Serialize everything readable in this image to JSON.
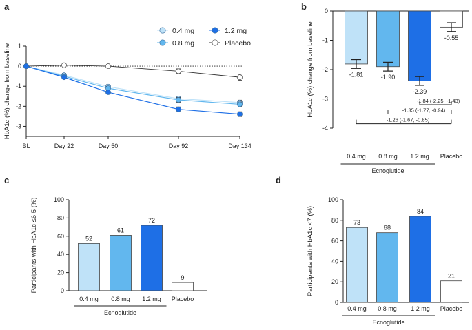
{
  "colors": {
    "dose_04": "#bfe2f8",
    "dose_08": "#62b7ee",
    "dose_12": "#1e6fe6",
    "placebo": "#ffffff",
    "axis": "#222222",
    "edge": "#444444"
  },
  "chart_data": [
    {
      "panel": "a",
      "type": "line",
      "categories": [
        "BL",
        "Day 22",
        "Day 50",
        "Day 92",
        "Day 134"
      ],
      "ylabel": "HbA1c (%) change from baseline",
      "ylim": [
        -3.5,
        1
      ],
      "yticks": [
        1,
        0,
        -1,
        -2,
        -3
      ],
      "legend_position": "top-right",
      "reference_line": 0,
      "series": [
        {
          "name": "0.4 mg",
          "color_key": "dose_04",
          "values": [
            0,
            -0.45,
            -1.02,
            -1.62,
            -1.81
          ],
          "errors": [
            0,
            0.09,
            0.1,
            0.12,
            0.12
          ]
        },
        {
          "name": "0.8 mg",
          "color_key": "dose_08",
          "values": [
            0,
            -0.5,
            -1.1,
            -1.68,
            -1.9
          ],
          "errors": [
            0,
            0.09,
            0.1,
            0.12,
            0.12
          ]
        },
        {
          "name": "1.2 mg",
          "color_key": "dose_12",
          "values": [
            0,
            -0.55,
            -1.3,
            -2.15,
            -2.39
          ],
          "errors": [
            0,
            0.08,
            0.09,
            0.12,
            0.12
          ]
        },
        {
          "name": "Placebo",
          "color_key": "placebo",
          "values": [
            0,
            0.05,
            0.0,
            -0.25,
            -0.55
          ],
          "errors": [
            0,
            0.06,
            0.07,
            0.12,
            0.15
          ]
        }
      ]
    },
    {
      "panel": "b",
      "type": "bar",
      "categories": [
        "0.4 mg",
        "0.8 mg",
        "1.2 mg",
        "Placebo"
      ],
      "group_label": "Ecnoglutide",
      "ylabel": "HbA1c (%) change from baseline",
      "ylim": [
        -4,
        0
      ],
      "yticks": [
        0,
        -1,
        -2,
        -3,
        -4
      ],
      "values": [
        -1.81,
        -1.9,
        -2.39,
        -0.55
      ],
      "value_labels": [
        "-1.81",
        "-1.90",
        "-2.39",
        "-0.55"
      ],
      "errors": [
        0.15,
        0.15,
        0.15,
        0.15
      ],
      "color_keys": [
        "dose_04",
        "dose_08",
        "dose_12",
        "placebo"
      ],
      "comparisons": [
        {
          "label": "-1.84 (-2.25, -1.43)",
          "from_index": 2,
          "to_index": 3,
          "y": -3.2
        },
        {
          "label": "-1.35 (-1.77, -0.94)",
          "from_index": 1,
          "to_index": 3,
          "y": -3.52
        },
        {
          "label": "-1.26 (-1.67, -0.85)",
          "from_index": 0,
          "to_index": 3,
          "y": -3.85
        }
      ]
    },
    {
      "panel": "c",
      "type": "bar",
      "categories": [
        "0.4 mg",
        "0.8 mg",
        "1.2 mg",
        "Placebo"
      ],
      "group_label": "Ecnoglutide",
      "ylabel": "Participants with HbA1c ≤6.5 (%)",
      "ylim": [
        0,
        100
      ],
      "yticks": [
        0,
        20,
        40,
        60,
        80,
        100
      ],
      "values": [
        52,
        61,
        72,
        9
      ],
      "value_labels": [
        "52",
        "61",
        "72",
        "9"
      ],
      "color_keys": [
        "dose_04",
        "dose_08",
        "dose_12",
        "placebo"
      ]
    },
    {
      "panel": "d",
      "type": "bar",
      "categories": [
        "0.4 mg",
        "0.8 mg",
        "1.2 mg",
        "Placebo"
      ],
      "group_label": "Ecnoglutide",
      "ylabel": "Participants with HbA1c <7 (%)",
      "ylim": [
        0,
        100
      ],
      "yticks": [
        0,
        20,
        40,
        60,
        80,
        100
      ],
      "values": [
        73,
        68,
        84,
        21
      ],
      "value_labels": [
        "73",
        "68",
        "84",
        "21"
      ],
      "color_keys": [
        "dose_04",
        "dose_08",
        "dose_12",
        "placebo"
      ]
    }
  ]
}
